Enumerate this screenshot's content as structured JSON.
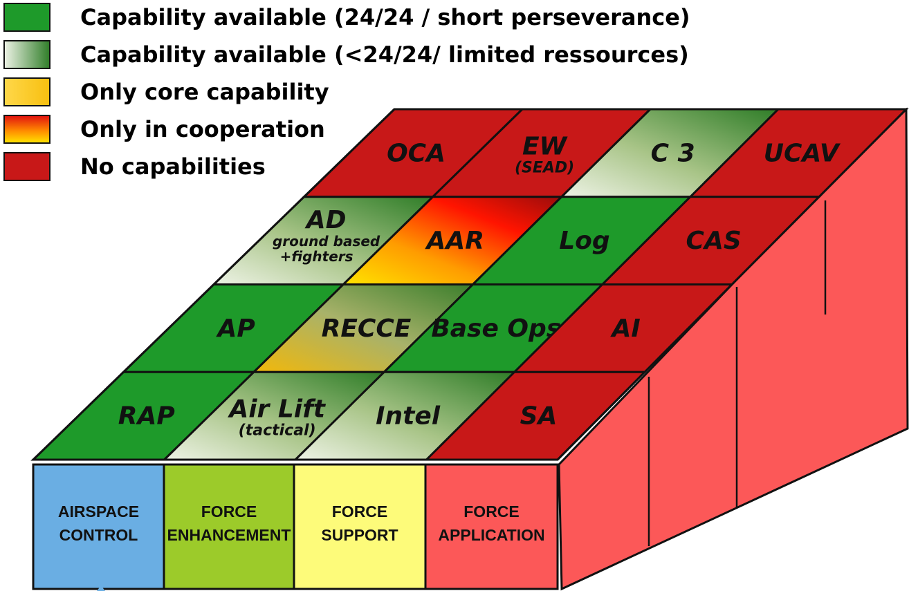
{
  "legend": [
    {
      "label": "Capability available (24/24 / short perseverance)",
      "fill": "green"
    },
    {
      "label": "Capability available (<24/24/ limited ressources)",
      "fill": "lightgreen"
    },
    {
      "label": "Only core capability",
      "fill": "yellow"
    },
    {
      "label": "Only in cooperation",
      "fill": "redyellow"
    },
    {
      "label": "No capabilities",
      "fill": "red"
    }
  ],
  "grid": {
    "rows": [
      [
        {
          "label": "OCA",
          "sub": "",
          "fill": "red"
        },
        {
          "label": "EW",
          "sub": "(SEAD)",
          "fill": "red"
        },
        {
          "label": "C 3",
          "sub": "",
          "fill": "lightgreen"
        },
        {
          "label": "UCAV",
          "sub": "",
          "fill": "red"
        }
      ],
      [
        {
          "label": "AD",
          "sub": "ground based\n+fighters",
          "fill": "lightgreen"
        },
        {
          "label": "AAR",
          "sub": "",
          "fill": "redyellow"
        },
        {
          "label": "Log",
          "sub": "",
          "fill": "green"
        },
        {
          "label": "CAS",
          "sub": "",
          "fill": "red"
        }
      ],
      [
        {
          "label": "AP",
          "sub": "",
          "fill": "green"
        },
        {
          "label": "RECCE",
          "sub": "",
          "fill": "yellowgreen"
        },
        {
          "label": "Base Ops",
          "sub": "",
          "fill": "green"
        },
        {
          "label": "AI",
          "sub": "",
          "fill": "red"
        }
      ],
      [
        {
          "label": "RAP",
          "sub": "",
          "fill": "green"
        },
        {
          "label": "Air Lift",
          "sub": "(tactical)",
          "fill": "lightgreen"
        },
        {
          "label": "Intel",
          "sub": "",
          "fill": "lightgreen"
        },
        {
          "label": "SA",
          "sub": "",
          "fill": "red"
        }
      ]
    ]
  },
  "columns": [
    {
      "line1": "AIRSPACE",
      "line2": "CONTROL",
      "color": "#6aaee3"
    },
    {
      "line1": "FORCE",
      "line2": "ENHANCEMENT",
      "color": "#9ccb2a"
    },
    {
      "line1": "FORCE",
      "line2": "SUPPORT",
      "color": "#fdfb7a"
    },
    {
      "line1": "FORCE",
      "line2": "APPLICATION",
      "color": "#fc5858"
    }
  ],
  "colors": {
    "green": "#1e9a2a",
    "red": "#c81818",
    "side": "#fc5858",
    "outline": "#111111"
  }
}
